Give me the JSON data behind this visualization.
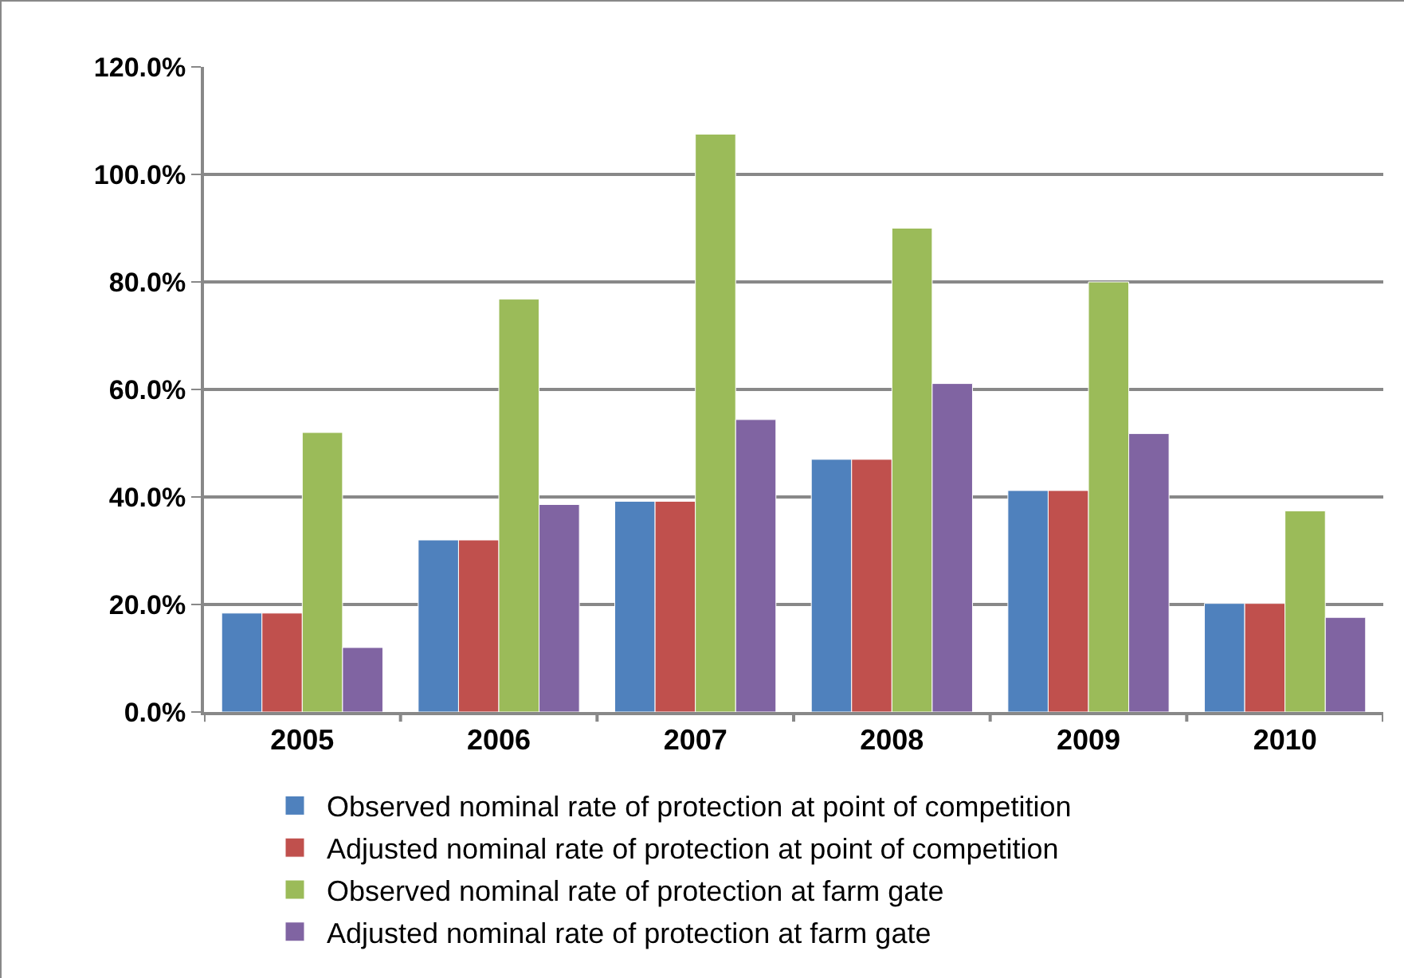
{
  "chart_data": {
    "type": "bar",
    "categories": [
      "2005",
      "2006",
      "2007",
      "2008",
      "2009",
      "2010"
    ],
    "series": [
      {
        "name": "Observed nominal rate of protection at point of competition",
        "color": "#4f81bd",
        "values": [
          18.4,
          32.0,
          39.2,
          47.0,
          41.2,
          20.2
        ]
      },
      {
        "name": "Adjusted nominal rate of protection at point of competition",
        "color": "#c0504d",
        "values": [
          18.4,
          32.0,
          39.2,
          47.0,
          41.2,
          20.2
        ]
      },
      {
        "name": "Observed nominal rate of protection at farm gate",
        "color": "#9bbb59",
        "values": [
          52.0,
          76.8,
          107.5,
          90.0,
          80.0,
          37.4
        ]
      },
      {
        "name": "Adjusted nominal rate of protection at farm gate",
        "color": "#8064a2",
        "values": [
          12.0,
          38.6,
          54.4,
          61.1,
          51.8,
          17.6
        ]
      }
    ],
    "ylim": [
      0,
      120
    ],
    "yticks": [
      {
        "value": 0,
        "label": "0.0%"
      },
      {
        "value": 20,
        "label": "20.0%"
      },
      {
        "value": 40,
        "label": "40.0%"
      },
      {
        "value": 60,
        "label": "60.0%"
      },
      {
        "value": 80,
        "label": "80.0%"
      },
      {
        "value": 100,
        "label": "100.0%"
      },
      {
        "value": 120,
        "label": "120.0%"
      }
    ],
    "grid": "y",
    "legend": "bottom"
  }
}
